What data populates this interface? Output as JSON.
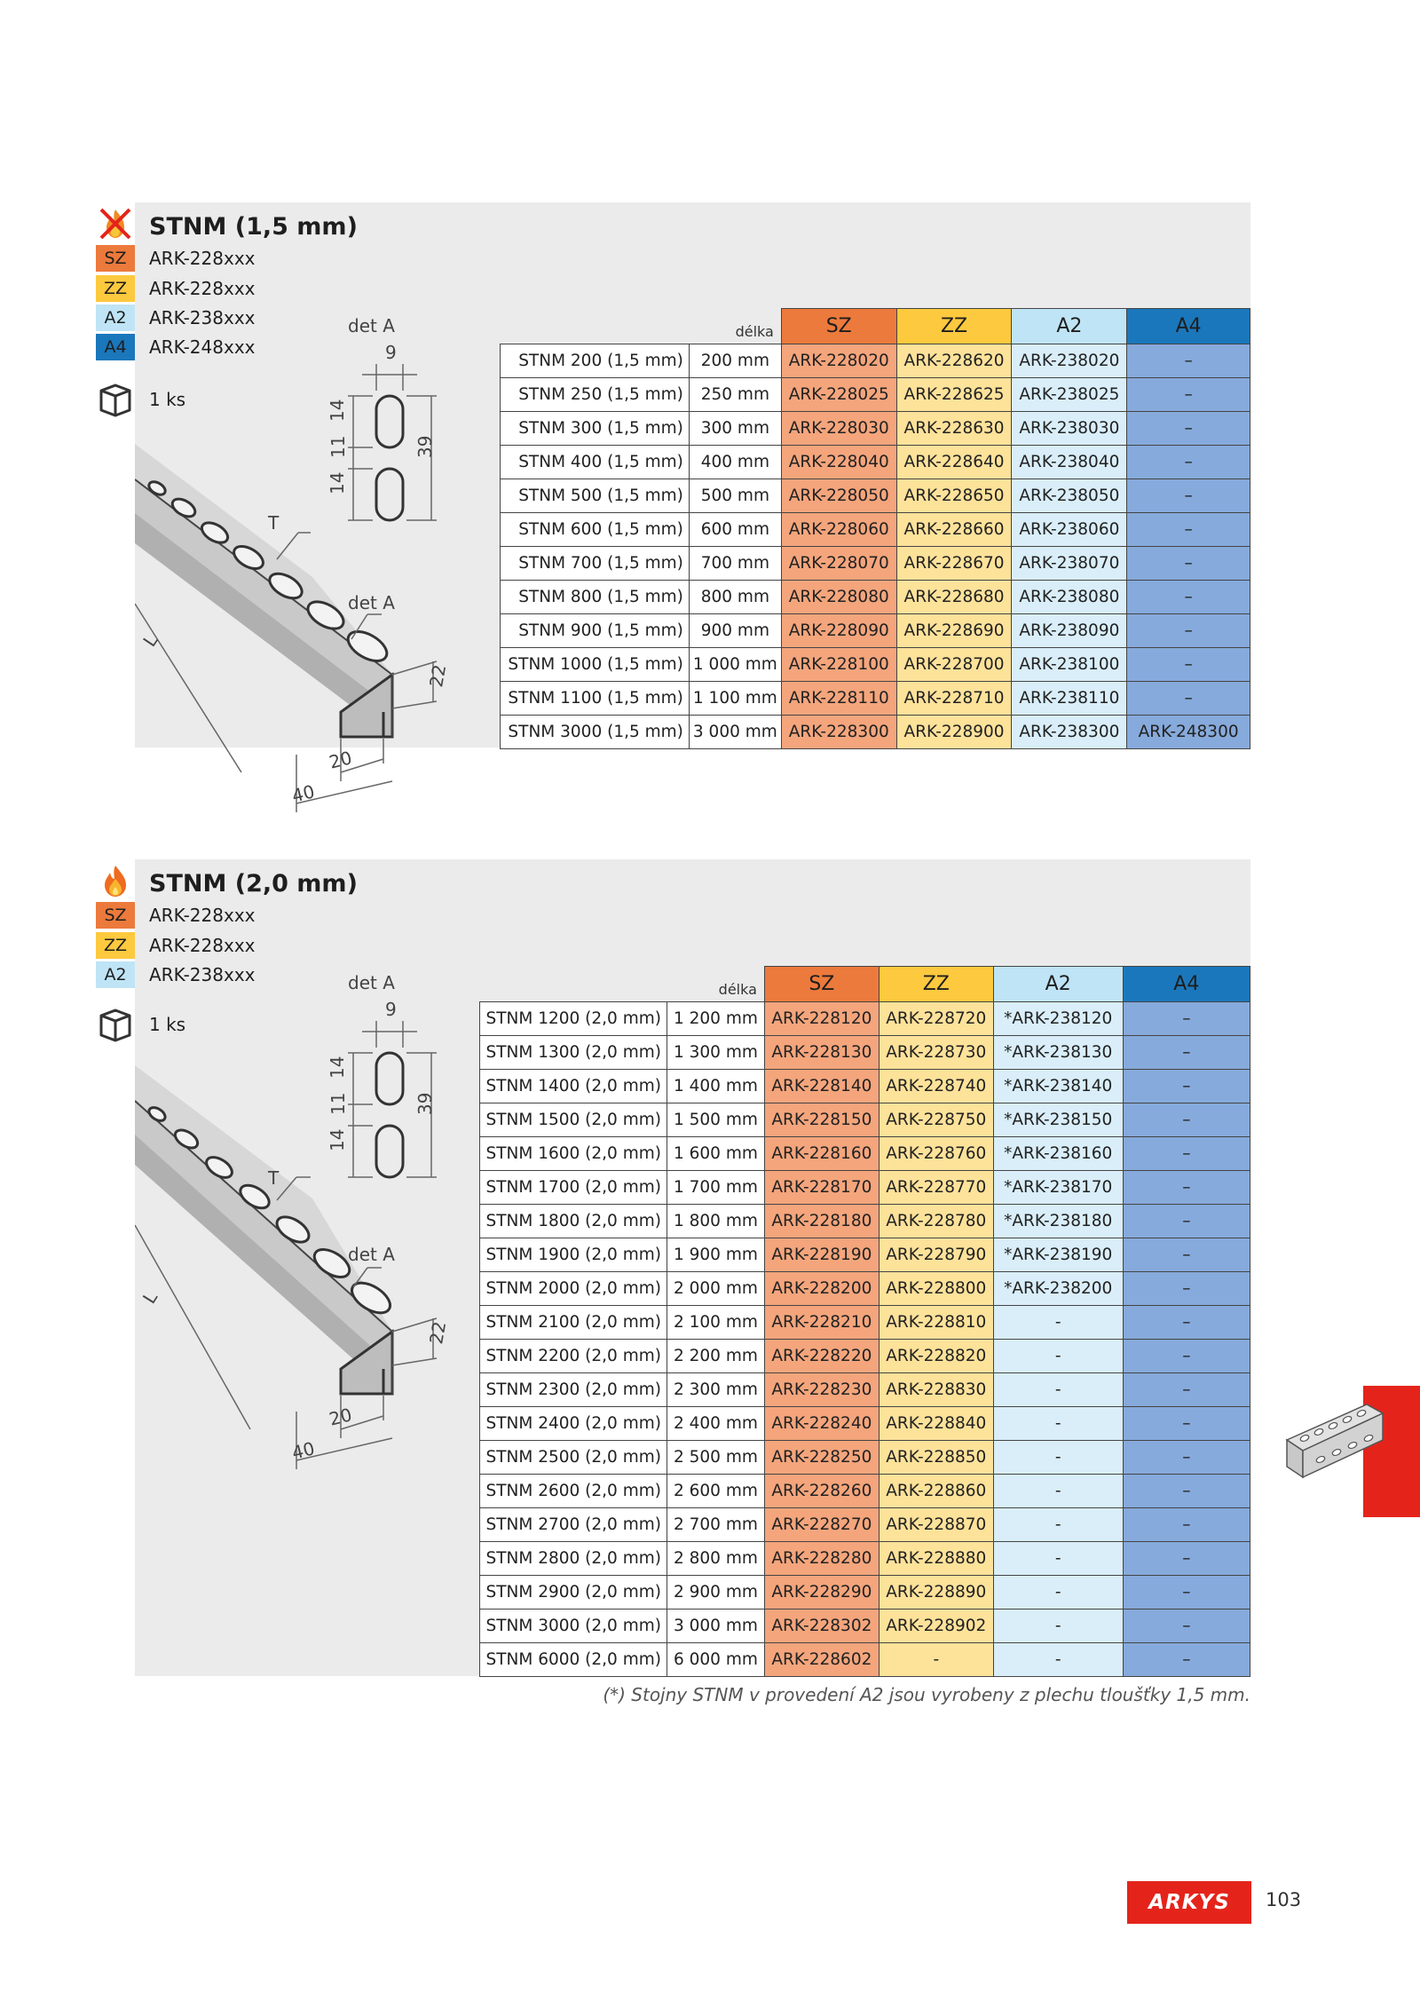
{
  "colors": {
    "sz": "#ec7a3c",
    "zz": "#fdc93e",
    "a2": "#bfe4f6",
    "a4": "#1b77bb",
    "brand": "#e4241b"
  },
  "drawing_labels": {
    "det": "det A",
    "w9": "9",
    "h14a": "14",
    "h11": "11",
    "h14b": "14",
    "h39": "39",
    "t": "T",
    "l": "L",
    "h22": "22",
    "w20": "20",
    "w40": "40"
  },
  "section1": {
    "icon": "no-fire-icon",
    "title": "STNM (1,5 mm)",
    "variants": [
      {
        "badge": "SZ",
        "code": "ARK-228xxx"
      },
      {
        "badge": "ZZ",
        "code": "ARK-228xxx"
      },
      {
        "badge": "A2",
        "code": "ARK-238xxx"
      },
      {
        "badge": "A4",
        "code": "ARK-248xxx"
      }
    ],
    "pack_icon": "package-box-icon",
    "pack": "1 ks",
    "table": {
      "length_header": "délka",
      "headers": [
        "SZ",
        "ZZ",
        "A2",
        "A4"
      ],
      "rows": [
        {
          "name": "STNM 200 (1,5 mm)",
          "len": "200 mm",
          "sz": "ARK-228020",
          "zz": "ARK-228620",
          "a2": "ARK-238020",
          "a4": "–"
        },
        {
          "name": "STNM 250 (1,5 mm)",
          "len": "250 mm",
          "sz": "ARK-228025",
          "zz": "ARK-228625",
          "a2": "ARK-238025",
          "a4": "–"
        },
        {
          "name": "STNM 300 (1,5 mm)",
          "len": "300 mm",
          "sz": "ARK-228030",
          "zz": "ARK-228630",
          "a2": "ARK-238030",
          "a4": "–"
        },
        {
          "name": "STNM 400 (1,5 mm)",
          "len": "400 mm",
          "sz": "ARK-228040",
          "zz": "ARK-228640",
          "a2": "ARK-238040",
          "a4": "–"
        },
        {
          "name": "STNM 500 (1,5 mm)",
          "len": "500 mm",
          "sz": "ARK-228050",
          "zz": "ARK-228650",
          "a2": "ARK-238050",
          "a4": "–"
        },
        {
          "name": "STNM 600 (1,5 mm)",
          "len": "600 mm",
          "sz": "ARK-228060",
          "zz": "ARK-228660",
          "a2": "ARK-238060",
          "a4": "–"
        },
        {
          "name": "STNM 700 (1,5 mm)",
          "len": "700 mm",
          "sz": "ARK-228070",
          "zz": "ARK-228670",
          "a2": "ARK-238070",
          "a4": "–"
        },
        {
          "name": "STNM 800 (1,5 mm)",
          "len": "800 mm",
          "sz": "ARK-228080",
          "zz": "ARK-228680",
          "a2": "ARK-238080",
          "a4": "–"
        },
        {
          "name": "STNM 900 (1,5 mm)",
          "len": "900 mm",
          "sz": "ARK-228090",
          "zz": "ARK-228690",
          "a2": "ARK-238090",
          "a4": "–"
        },
        {
          "name": "STNM 1000 (1,5 mm)",
          "len": "1 000 mm",
          "sz": "ARK-228100",
          "zz": "ARK-228700",
          "a2": "ARK-238100",
          "a4": "–"
        },
        {
          "name": "STNM 1100 (1,5 mm)",
          "len": "1 100 mm",
          "sz": "ARK-228110",
          "zz": "ARK-228710",
          "a2": "ARK-238110",
          "a4": "–"
        },
        {
          "name": "STNM 3000 (1,5 mm)",
          "len": "3 000 mm",
          "sz": "ARK-228300",
          "zz": "ARK-228900",
          "a2": "ARK-238300",
          "a4": "ARK-248300"
        }
      ]
    }
  },
  "section2": {
    "icon": "fire-icon",
    "title": "STNM (2,0 mm)",
    "variants": [
      {
        "badge": "SZ",
        "code": "ARK-228xxx"
      },
      {
        "badge": "ZZ",
        "code": "ARK-228xxx"
      },
      {
        "badge": "A2",
        "code": "ARK-238xxx"
      }
    ],
    "pack_icon": "package-box-icon",
    "pack": "1 ks",
    "table": {
      "length_header": "délka",
      "headers": [
        "SZ",
        "ZZ",
        "A2",
        "A4"
      ],
      "rows": [
        {
          "name": "STNM 1200 (2,0 mm)",
          "len": "1 200 mm",
          "sz": "ARK-228120",
          "zz": "ARK-228720",
          "a2": "*ARK-238120",
          "a4": "–"
        },
        {
          "name": "STNM 1300 (2,0 mm)",
          "len": "1 300 mm",
          "sz": "ARK-228130",
          "zz": "ARK-228730",
          "a2": "*ARK-238130",
          "a4": "–"
        },
        {
          "name": "STNM 1400 (2,0 mm)",
          "len": "1 400 mm",
          "sz": "ARK-228140",
          "zz": "ARK-228740",
          "a2": "*ARK-238140",
          "a4": "–"
        },
        {
          "name": "STNM 1500 (2,0 mm)",
          "len": "1 500 mm",
          "sz": "ARK-228150",
          "zz": "ARK-228750",
          "a2": "*ARK-238150",
          "a4": "–"
        },
        {
          "name": "STNM 1600 (2,0 mm)",
          "len": "1 600 mm",
          "sz": "ARK-228160",
          "zz": "ARK-228760",
          "a2": "*ARK-238160",
          "a4": "–"
        },
        {
          "name": "STNM 1700 (2,0 mm)",
          "len": "1 700 mm",
          "sz": "ARK-228170",
          "zz": "ARK-228770",
          "a2": "*ARK-238170",
          "a4": "–"
        },
        {
          "name": "STNM 1800 (2,0 mm)",
          "len": "1 800 mm",
          "sz": "ARK-228180",
          "zz": "ARK-228780",
          "a2": "*ARK-238180",
          "a4": "–"
        },
        {
          "name": "STNM 1900 (2,0 mm)",
          "len": "1 900 mm",
          "sz": "ARK-228190",
          "zz": "ARK-228790",
          "a2": "*ARK-238190",
          "a4": "–"
        },
        {
          "name": "STNM 2000 (2,0 mm)",
          "len": "2 000 mm",
          "sz": "ARK-228200",
          "zz": "ARK-228800",
          "a2": "*ARK-238200",
          "a4": "–"
        },
        {
          "name": "STNM 2100 (2,0 mm)",
          "len": "2 100 mm",
          "sz": "ARK-228210",
          "zz": "ARK-228810",
          "a2": "-",
          "a4": "–"
        },
        {
          "name": "STNM 2200 (2,0 mm)",
          "len": "2 200 mm",
          "sz": "ARK-228220",
          "zz": "ARK-228820",
          "a2": "-",
          "a4": "–"
        },
        {
          "name": "STNM 2300 (2,0 mm)",
          "len": "2 300 mm",
          "sz": "ARK-228230",
          "zz": "ARK-228830",
          "a2": "-",
          "a4": "–"
        },
        {
          "name": "STNM 2400 (2,0 mm)",
          "len": "2 400 mm",
          "sz": "ARK-228240",
          "zz": "ARK-228840",
          "a2": "-",
          "a4": "–"
        },
        {
          "name": "STNM 2500 (2,0 mm)",
          "len": "2 500 mm",
          "sz": "ARK-228250",
          "zz": "ARK-228850",
          "a2": "-",
          "a4": "–"
        },
        {
          "name": "STNM 2600 (2,0 mm)",
          "len": "2 600 mm",
          "sz": "ARK-228260",
          "zz": "ARK-228860",
          "a2": "-",
          "a4": "–"
        },
        {
          "name": "STNM 2700 (2,0 mm)",
          "len": "2 700 mm",
          "sz": "ARK-228270",
          "zz": "ARK-228870",
          "a2": "-",
          "a4": "–"
        },
        {
          "name": "STNM 2800 (2,0 mm)",
          "len": "2 800 mm",
          "sz": "ARK-228280",
          "zz": "ARK-228880",
          "a2": "-",
          "a4": "–"
        },
        {
          "name": "STNM 2900 (2,0 mm)",
          "len": "2 900 mm",
          "sz": "ARK-228290",
          "zz": "ARK-228890",
          "a2": "-",
          "a4": "–"
        },
        {
          "name": "STNM 3000 (2,0 mm)",
          "len": "3 000 mm",
          "sz": "ARK-228302",
          "zz": "ARK-228902",
          "a2": "-",
          "a4": "–"
        },
        {
          "name": "STNM 6000 (2,0 mm)",
          "len": "6 000 mm",
          "sz": "ARK-228602",
          "zz": "-",
          "a2": "-",
          "a4": "–"
        }
      ]
    }
  },
  "footnote": "(*) Stojny STNM v provedení A2 jsou vyrobeny z plechu tloušťky 1,5 mm.",
  "brand": {
    "logo_text": "ARKYS",
    "logo_icon": "arkys-logo"
  },
  "page_number": "103",
  "side_thumbnail_icon": "channel-profile-thumbnail-icon"
}
